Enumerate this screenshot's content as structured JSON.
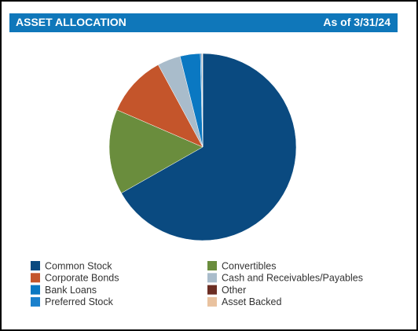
{
  "chart_data": {
    "type": "pie",
    "title": "ASSET ALLOCATION",
    "subtitle": "As of 3/31/24",
    "categories": [
      "Common Stock",
      "Convertibles",
      "Corporate Bonds",
      "Cash and Receivables/Payables",
      "Bank Loans",
      "Other",
      "Preferred Stock",
      "Asset Backed"
    ],
    "values": [
      66.8,
      14.7,
      10.6,
      4.0,
      3.5,
      0.1,
      0.2,
      0.1
    ],
    "colors": [
      "#0a4a80",
      "#6a8d3d",
      "#c4552b",
      "#a9bccb",
      "#0a78c2",
      "#6b2d23",
      "#1a80cc",
      "#e9c29f"
    ],
    "slice_order": [
      0,
      1,
      2,
      3,
      4,
      6,
      5,
      7
    ],
    "legend": "bottom"
  }
}
